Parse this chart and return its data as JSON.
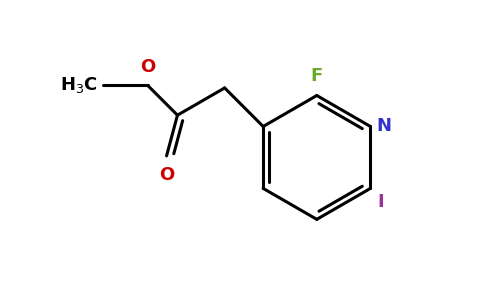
{
  "bg_color": "#ffffff",
  "bond_color": "#000000",
  "bond_width": 2.2,
  "F_color": "#6aaa2a",
  "N_color": "#3333cc",
  "O_color": "#cc0000",
  "I_color": "#993399",
  "CH3_color": "#000000",
  "figsize": [
    4.84,
    3.0
  ],
  "dpi": 100,
  "xlim": [
    0,
    9.68
  ],
  "ylim": [
    0,
    6.0
  ]
}
